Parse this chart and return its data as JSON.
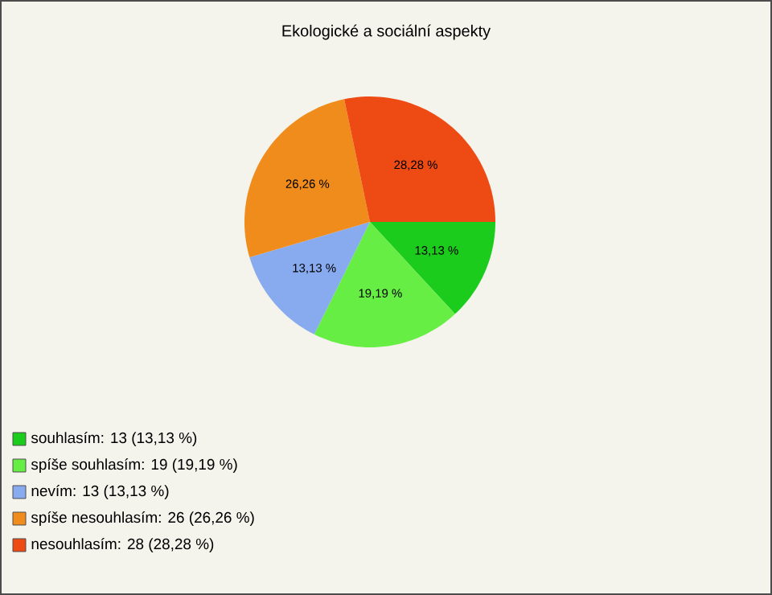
{
  "chart_data": {
    "type": "pie",
    "title": "Ekologické a sociální aspekty",
    "categories": [
      "souhlasím: 13 (13,13 %)",
      "spíše souhlasím: 19 (19,19 %)",
      "nevím: 13 (13,13 %)",
      "spíše nesouhlasím: 26 (26,26 %)",
      "nesouhlasím: 28 (28,28 %)"
    ],
    "values": [
      13.13,
      19.19,
      13.13,
      26.26,
      28.28
    ],
    "colors": [
      "#1ccc1c",
      "#66ee44",
      "#88aaee",
      "#f08c1c",
      "#ee4a14"
    ],
    "value_labels": [
      "13,13 %",
      "19,19 %",
      "13,13 %",
      "26,26 %",
      "28,28 %"
    ],
    "legend": "bottom"
  }
}
